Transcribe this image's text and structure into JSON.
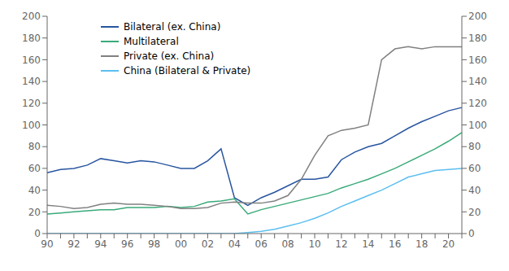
{
  "chart_data": {
    "type": "line",
    "categories": [
      "90",
      null,
      "92",
      null,
      "94",
      null,
      "96",
      null,
      "98",
      null,
      "00",
      null,
      "02",
      null,
      "04",
      null,
      "06",
      null,
      "08",
      null,
      "10",
      null,
      "12",
      null,
      "14",
      null,
      "16",
      null,
      "18",
      null,
      "20",
      null
    ],
    "series": [
      {
        "name": "Bilateral (ex. China)",
        "color": "#2855a0",
        "values": [
          56,
          59,
          60,
          63,
          69,
          67,
          65,
          67,
          66,
          63,
          60,
          60,
          67,
          78,
          33,
          26,
          33,
          38,
          44,
          50,
          50,
          52,
          68,
          75,
          80,
          83,
          90,
          97,
          103,
          108,
          113,
          116
        ]
      },
      {
        "name": "Multilateral",
        "color": "#3aaa7a",
        "values": [
          18,
          19,
          20,
          21,
          22,
          22,
          24,
          24,
          24,
          25,
          24,
          25,
          29,
          30,
          32,
          18,
          22,
          25,
          28,
          31,
          34,
          37,
          42,
          46,
          50,
          55,
          60,
          66,
          72,
          78,
          85,
          93
        ]
      },
      {
        "name": "Private (ex. China)",
        "color": "#808080",
        "values": [
          26,
          25,
          23,
          24,
          27,
          28,
          27,
          27,
          26,
          25,
          23,
          23,
          24,
          28,
          29,
          28,
          28,
          30,
          35,
          50,
          72,
          90,
          95,
          97,
          100,
          160,
          170,
          172,
          170,
          172,
          172,
          172
        ]
      },
      {
        "name": "China (Bilateral & Private)",
        "color": "#5bbfef",
        "values": [
          0,
          0,
          0,
          0,
          0,
          0,
          0,
          0,
          0,
          0,
          0,
          0,
          0,
          0,
          0,
          1,
          2,
          4,
          7,
          10,
          14,
          19,
          25,
          30,
          35,
          40,
          46,
          52,
          55,
          58,
          59,
          60
        ]
      }
    ],
    "ylim": [
      0,
      200
    ],
    "yticks": [
      0,
      20,
      40,
      60,
      80,
      100,
      120,
      140,
      160,
      180,
      200
    ],
    "y2lim": [
      0,
      200
    ],
    "y2ticks": [
      0,
      20,
      40,
      60,
      80,
      100,
      120,
      140,
      160,
      180,
      200
    ],
    "grid": false,
    "legend": "upper left"
  }
}
